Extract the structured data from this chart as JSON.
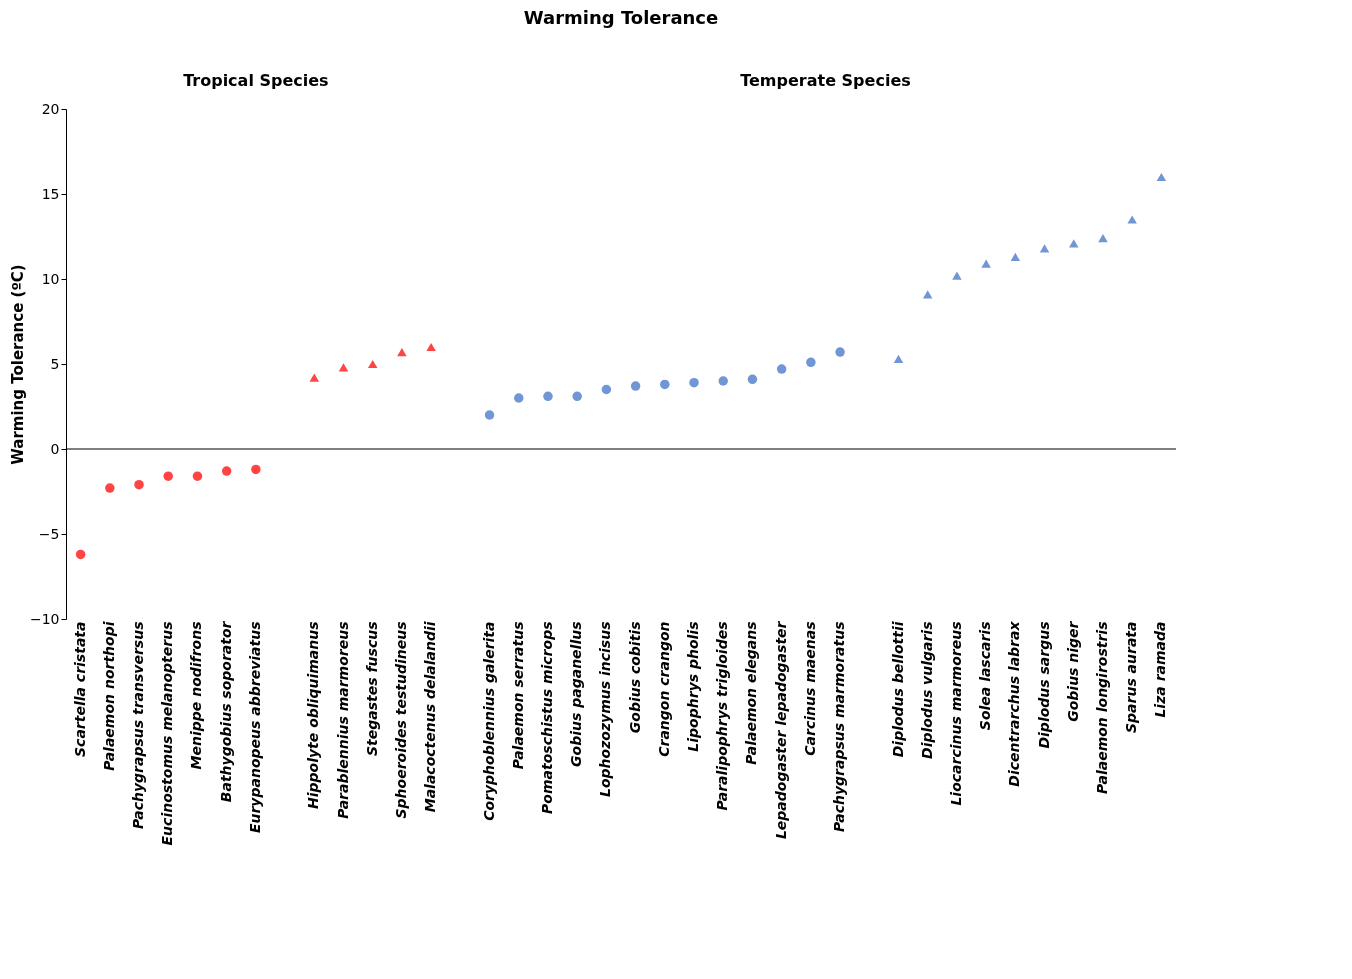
{
  "chart_data": {
    "type": "scatter",
    "title": "Warming Tolerance",
    "ylabel": "Warming Tolerance (ºC)",
    "annotations": [
      "Tropical Species",
      "Temperate Species"
    ],
    "categories": [
      "Scartella cristata",
      "Palaemon northopi",
      "Pachygrapsus transversus",
      "Eucinostomus melanopterus",
      "Menippe nodifrons",
      "Bathygobius soporator",
      "Eurypanopeus abbreviatus",
      null,
      "Hippolyte obliquimanus",
      "Parablennius marmoreus",
      "Stegastes fuscus",
      "Sphoeroides testudineus",
      "Malacoctenus delalandii",
      null,
      "Coryphoblennius galerita",
      "Palaemon serratus",
      "Pomatoschistus microps",
      "Gobius paganellus",
      "Lophozozymus incisus",
      "Gobius cobitis",
      "Crangon crangon",
      "Lipophrys pholis",
      "Paralipophrys trigloides",
      "Palaemon elegans",
      "Lepadogaster lepadogaster",
      "Carcinus maenas",
      "Pachygrapsus marmoratus",
      null,
      "Diplodus bellottii",
      "Diplodus vulgaris",
      "Liocarcinus marmoreus",
      "Solea lascaris",
      "Dicentrarchus labrax",
      "Diplodus sargus",
      "Gobius niger",
      "Palaemon longirostris",
      "Sparus aurata",
      "Liza ramada"
    ],
    "series": [
      {
        "color": "#ff4444",
        "marker": "circle",
        "values": [
          -6.2,
          -2.3,
          -2.1,
          -1.6,
          -1.6,
          -1.3,
          -1.2,
          null,
          null,
          null,
          null,
          null,
          null,
          null,
          null,
          null,
          null,
          null,
          null,
          null,
          null,
          null,
          null,
          null,
          null,
          null,
          null,
          null,
          null,
          null,
          null,
          null,
          null,
          null,
          null,
          null,
          null,
          null
        ]
      },
      {
        "color": "#ff4444",
        "marker": "triangle",
        "values": [
          null,
          null,
          null,
          null,
          null,
          null,
          null,
          null,
          4.2,
          4.8,
          5.0,
          5.7,
          6.0,
          null,
          null,
          null,
          null,
          null,
          null,
          null,
          null,
          null,
          null,
          null,
          null,
          null,
          null,
          null,
          null,
          null,
          null,
          null,
          null,
          null,
          null,
          null,
          null,
          null
        ]
      },
      {
        "color": "#7096d4",
        "marker": "circle",
        "values": [
          null,
          null,
          null,
          null,
          null,
          null,
          null,
          null,
          null,
          null,
          null,
          null,
          null,
          null,
          2.0,
          3.0,
          3.1,
          3.1,
          3.5,
          3.7,
          3.8,
          3.9,
          4.0,
          4.1,
          4.7,
          5.1,
          5.7,
          null,
          null,
          null,
          null,
          null,
          null,
          null,
          null,
          null,
          null,
          null
        ]
      },
      {
        "color": "#7096d4",
        "marker": "triangle",
        "values": [
          null,
          null,
          null,
          null,
          null,
          null,
          null,
          null,
          null,
          null,
          null,
          null,
          null,
          null,
          null,
          null,
          null,
          null,
          null,
          null,
          null,
          null,
          null,
          null,
          null,
          null,
          null,
          null,
          5.3,
          9.1,
          10.2,
          10.9,
          11.3,
          11.8,
          12.1,
          12.4,
          13.5,
          16.0
        ]
      }
    ],
    "ylim": [
      -10,
      20
    ],
    "yticks": [
      -10,
      -5,
      0,
      5,
      10,
      15,
      20
    ]
  }
}
